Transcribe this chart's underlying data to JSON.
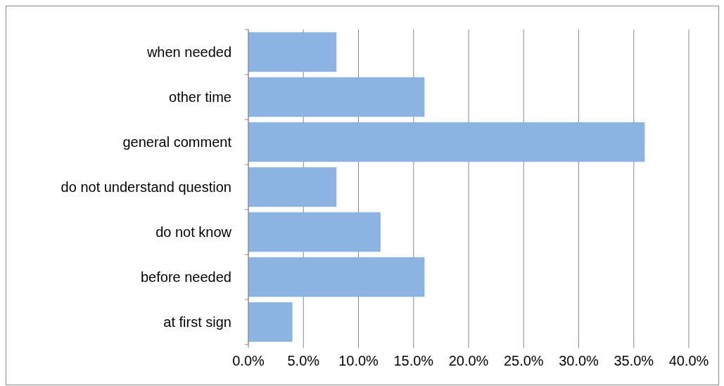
{
  "chart_data": {
    "type": "bar",
    "orientation": "horizontal",
    "categories": [
      "when needed",
      "other time",
      "general comment",
      "do not understand question",
      "do not know",
      "before needed",
      "at first sign"
    ],
    "values": [
      8,
      16,
      36,
      8,
      12,
      16,
      4
    ],
    "color": "#8db3e2",
    "xlim": [
      0,
      40
    ],
    "xticks": [
      {
        "value": 0,
        "label": "0.0%"
      },
      {
        "value": 5,
        "label": "5.0%"
      },
      {
        "value": 10,
        "label": "10.0%"
      },
      {
        "value": 15,
        "label": "15.0%"
      },
      {
        "value": 20,
        "label": "20.0%"
      },
      {
        "value": 25,
        "label": "25.0%"
      },
      {
        "value": 30,
        "label": "30.0%"
      },
      {
        "value": 35,
        "label": "35.0%"
      },
      {
        "value": 40,
        "label": "40.0%"
      }
    ],
    "grid": "x"
  }
}
